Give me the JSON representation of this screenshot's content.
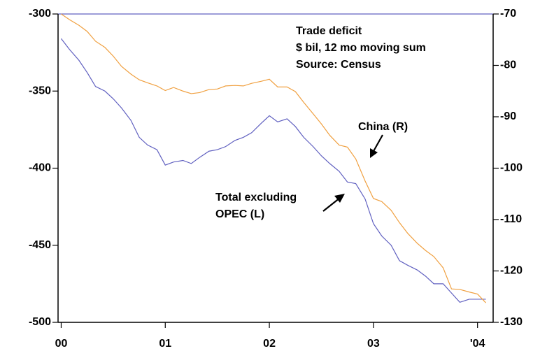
{
  "chart_data": {
    "type": "line",
    "annotations": [
      "Trade deficit",
      "$ bil, 12 mo moving sum",
      "Source: Census",
      "China (R)",
      "Total excluding",
      "OPEC (L)"
    ],
    "x": [
      2000.0,
      2000.08,
      2000.17,
      2000.25,
      2000.33,
      2000.42,
      2000.5,
      2000.58,
      2000.67,
      2000.75,
      2000.83,
      2000.92,
      2001.0,
      2001.08,
      2001.17,
      2001.25,
      2001.33,
      2001.42,
      2001.5,
      2001.58,
      2001.67,
      2001.75,
      2001.83,
      2001.92,
      2002.0,
      2002.08,
      2002.17,
      2002.25,
      2002.33,
      2002.42,
      2002.5,
      2002.58,
      2002.67,
      2002.75,
      2002.83,
      2002.92,
      2003.0,
      2003.08,
      2003.17,
      2003.25,
      2003.33,
      2003.42,
      2003.5,
      2003.58,
      2003.67,
      2003.75,
      2003.83,
      2003.92,
      2004.0,
      2004.08
    ],
    "series": [
      {
        "color": "#6060c0",
        "axis": "y",
        "values": [
          -316,
          -323,
          -330,
          -338,
          -347,
          -350,
          -355,
          -361,
          -369,
          -380,
          -385,
          -388,
          -398,
          -396,
          -395,
          -397,
          -393,
          -389,
          -388,
          -386,
          -382,
          -380,
          -377,
          -371,
          -366,
          -370,
          -368,
          -373,
          -380,
          -386,
          -392,
          -397,
          -402,
          -409,
          -410,
          -420,
          -436,
          -444,
          -450,
          -460,
          -463,
          -466,
          -470,
          -475,
          -475,
          -481,
          -487,
          -485,
          -485,
          -485
        ]
      },
      {
        "color": "#f0a040",
        "axis": "y2",
        "values": [
          -70,
          -71.1,
          -72.2,
          -73.4,
          -75.3,
          -76.5,
          -78.2,
          -80.2,
          -81.7,
          -82.8,
          -83.4,
          -84.0,
          -84.9,
          -84.3,
          -85.0,
          -85.5,
          -85.3,
          -84.7,
          -84.6,
          -84.0,
          -83.9,
          -84.0,
          -83.5,
          -83.1,
          -82.7,
          -84.2,
          -84.2,
          -85.1,
          -87.2,
          -89.4,
          -91.4,
          -93.6,
          -95.5,
          -95.9,
          -98.2,
          -102.5,
          -105.9,
          -106.5,
          -108.2,
          -110.6,
          -112.7,
          -114.6,
          -116.0,
          -117.2,
          -119.4,
          -123.5,
          -123.6,
          -124.1,
          -124.5,
          -126.2
        ]
      }
    ],
    "xlim": [
      1999.97,
      2004.15
    ],
    "xticks": [
      {
        "value": 2000,
        "label": "00"
      },
      {
        "value": 2001,
        "label": "01"
      },
      {
        "value": 2002,
        "label": "02"
      },
      {
        "value": 2003,
        "label": "03"
      },
      {
        "value": 2004,
        "label": "'04"
      }
    ],
    "ylim": [
      -500,
      -300
    ],
    "yticks": [
      -500,
      -450,
      -400,
      -350,
      -300
    ],
    "y2lim": [
      -130,
      -70
    ],
    "y2ticks": [
      -130,
      -120,
      -110,
      -100,
      -90,
      -80,
      -70
    ]
  }
}
